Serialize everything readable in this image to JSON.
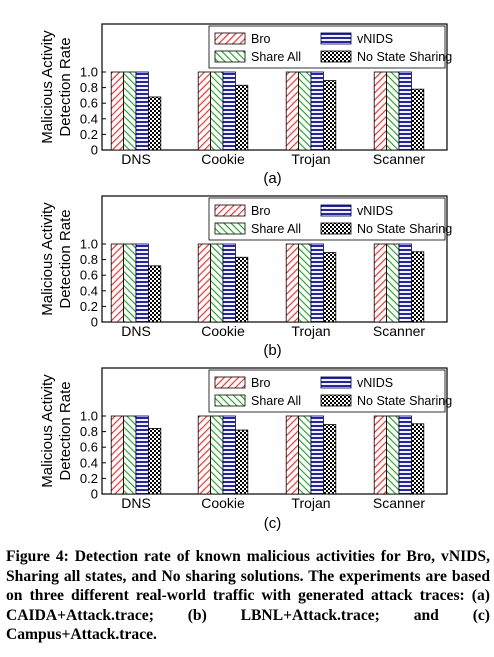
{
  "chart_data": [
    {
      "type": "bar",
      "ylabel": "Malicious Activity Detection Rate",
      "ylabel_lines": [
        "Malicious Activity",
        "Detection Rate"
      ],
      "ylim": [
        0,
        1.0
      ],
      "yticks": [
        "0",
        "0.2",
        "0.4",
        "0.6",
        "0.8",
        "1.0"
      ],
      "categories": [
        "DNS",
        "Cookie",
        "Trojan",
        "Scanner"
      ],
      "legend_position": "top-right",
      "series": [
        {
          "name": "Bro",
          "values": [
            1.0,
            1.0,
            1.0,
            1.0
          ]
        },
        {
          "name": "Share All",
          "values": [
            1.0,
            1.0,
            1.0,
            1.0
          ]
        },
        {
          "name": "vNIDS",
          "values": [
            1.0,
            1.0,
            1.0,
            1.0
          ]
        },
        {
          "name": "No State Sharing",
          "values": [
            0.68,
            0.83,
            0.89,
            0.78
          ]
        }
      ],
      "sublabel": "(a)"
    },
    {
      "type": "bar",
      "ylabel": "Malicious Activity Detection Rate",
      "ylabel_lines": [
        "Malicious Activity",
        "Detection Rate"
      ],
      "ylim": [
        0,
        1.0
      ],
      "yticks": [
        "0",
        "0.2",
        "0.4",
        "0.6",
        "0.8",
        "1.0"
      ],
      "categories": [
        "DNS",
        "Cookie",
        "Trojan",
        "Scanner"
      ],
      "legend_position": "top-right",
      "series": [
        {
          "name": "Bro",
          "values": [
            1.0,
            1.0,
            1.0,
            1.0
          ]
        },
        {
          "name": "Share All",
          "values": [
            1.0,
            1.0,
            1.0,
            1.0
          ]
        },
        {
          "name": "vNIDS",
          "values": [
            1.0,
            1.0,
            1.0,
            1.0
          ]
        },
        {
          "name": "No State Sharing",
          "values": [
            0.72,
            0.83,
            0.89,
            0.9
          ]
        }
      ],
      "sublabel": "(b)"
    },
    {
      "type": "bar",
      "ylabel": "Malicious Activity Detection Rate",
      "ylabel_lines": [
        "Malicious Activity",
        "Detection Rate"
      ],
      "ylim": [
        0,
        1.0
      ],
      "yticks": [
        "0",
        "0.2",
        "0.4",
        "0.6",
        "0.8",
        "1.0"
      ],
      "categories": [
        "DNS",
        "Cookie",
        "Trojan",
        "Scanner"
      ],
      "legend_position": "top-right",
      "series": [
        {
          "name": "Bro",
          "values": [
            1.0,
            1.0,
            1.0,
            1.0
          ]
        },
        {
          "name": "Share All",
          "values": [
            1.0,
            1.0,
            1.0,
            1.0
          ]
        },
        {
          "name": "vNIDS",
          "values": [
            1.0,
            1.0,
            1.0,
            1.0
          ]
        },
        {
          "name": "No State Sharing",
          "values": [
            0.84,
            0.82,
            0.89,
            0.9
          ]
        }
      ],
      "sublabel": "(c)"
    }
  ],
  "colors": {
    "bro": "#ff1f1f",
    "share_all": "#1aa31a",
    "vnids": "#1a1aff",
    "no_state_sharing": "#000000"
  },
  "caption": "Figure 4: Detection rate of known malicious activities for Bro, vNIDS, Sharing all states, and No sharing solutions. The experiments are based on three different real-world traffic with generated attack traces: (a) CAIDA+Attack.trace; (b) LBNL+Attack.trace; and (c) Campus+Attack.trace."
}
